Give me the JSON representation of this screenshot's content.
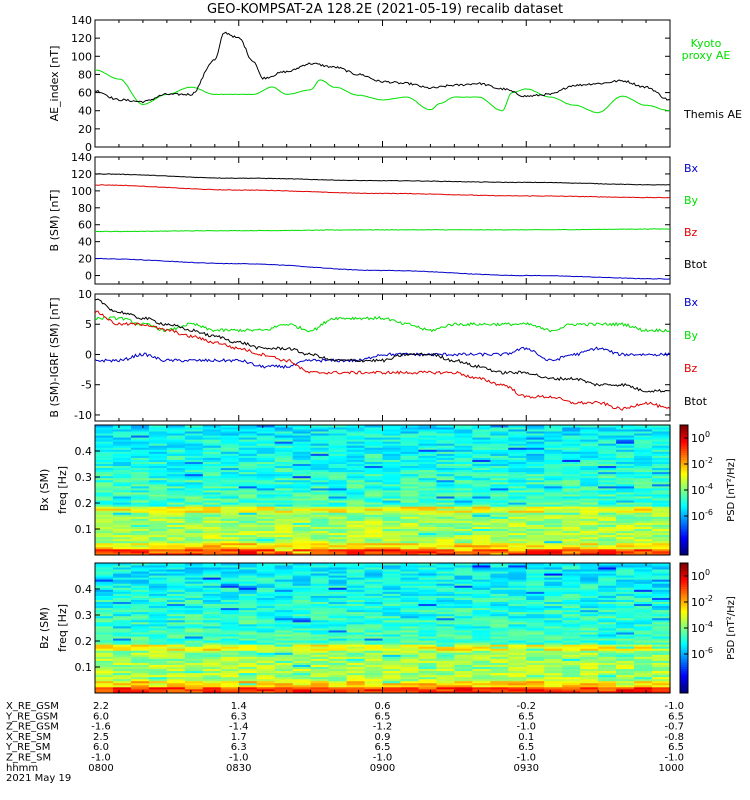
{
  "title": "GEO-KOMPSAT-2A 128.2E (2021-05-19) recalib dataset",
  "colors": {
    "black": "#000000",
    "red": "#e00000",
    "green": "#00e000",
    "blue": "#0000c8"
  },
  "chart_data": [
    {
      "type": "line",
      "id": "ae",
      "ylabel": "AE_index [nT]",
      "ylim": [
        0,
        140
      ],
      "yticks": [
        0,
        20,
        40,
        60,
        80,
        100,
        120,
        140
      ],
      "x_unit": "UT",
      "xlim": [
        "0800",
        "1000"
      ],
      "legend_placement": "right",
      "series": [
        {
          "name": "Kyoto proxy AE",
          "color": "#00e000",
          "x": [
            "0800",
            "0805",
            "0810",
            "0815",
            "0820",
            "0825",
            "0830",
            "0833",
            "0837",
            "0840",
            "0845",
            "0847",
            "0850",
            "0855",
            "0900",
            "0905",
            "0910",
            "0912",
            "0915",
            "0920",
            "0925",
            "0927",
            "0930",
            "0935",
            "0940",
            "0945",
            "0950",
            "0955",
            "1000"
          ],
          "values": [
            85,
            75,
            47,
            58,
            66,
            58,
            58,
            58,
            66,
            58,
            63,
            74,
            66,
            57,
            52,
            55,
            41,
            48,
            55,
            55,
            40,
            60,
            64,
            55,
            46,
            38,
            56,
            46,
            40
          ]
        },
        {
          "name": "Themis AE",
          "color": "#000000",
          "x": [
            "0800",
            "0805",
            "0810",
            "0815",
            "0820",
            "0825",
            "0827",
            "0830",
            "0833",
            "0835",
            "0840",
            "0845",
            "0850",
            "0855",
            "0900",
            "0905",
            "0910",
            "0915",
            "0920",
            "0925",
            "0930",
            "0935",
            "0940",
            "0945",
            "0950",
            "0955",
            "1000"
          ],
          "values": [
            62,
            52,
            50,
            58,
            58,
            96,
            126,
            120,
            95,
            76,
            83,
            92,
            88,
            80,
            72,
            70,
            65,
            68,
            70,
            64,
            56,
            58,
            68,
            70,
            73,
            66,
            52
          ]
        }
      ]
    },
    {
      "type": "line",
      "id": "b",
      "ylabel": "B (SM) [nT]",
      "ylim": [
        -10,
        140
      ],
      "yticks": [
        0,
        20,
        40,
        60,
        80,
        100,
        120,
        140
      ],
      "legend_placement": "right",
      "series": [
        {
          "name": "Bx",
          "color": "#0000c8",
          "x": [
            "0800",
            "0830",
            "0900",
            "0930",
            "1000"
          ],
          "values": [
            20,
            14,
            6,
            0,
            -4
          ]
        },
        {
          "name": "By",
          "color": "#00e000",
          "x": [
            "0800",
            "0830",
            "0900",
            "0930",
            "1000"
          ],
          "values": [
            52,
            53,
            54,
            54,
            55
          ]
        },
        {
          "name": "Bz",
          "color": "#e00000",
          "x": [
            "0800",
            "0830",
            "0900",
            "0930",
            "1000"
          ],
          "values": [
            107,
            101,
            97,
            94,
            92
          ]
        },
        {
          "name": "Btot",
          "color": "#000000",
          "x": [
            "0800",
            "0830",
            "0900",
            "0930",
            "1000"
          ],
          "values": [
            120,
            115,
            112,
            110,
            107
          ]
        }
      ]
    },
    {
      "type": "line",
      "id": "db",
      "ylabel": "B (SM)-IGRF (SM) [nT]",
      "ylim": [
        -11,
        10
      ],
      "yticks": [
        -10,
        -5,
        0,
        5,
        10
      ],
      "legend_placement": "right",
      "series": [
        {
          "name": "Bx",
          "color": "#0000c8",
          "x": [
            "0800",
            "0805",
            "0810",
            "0815",
            "0820",
            "0825",
            "0830",
            "0835",
            "0840",
            "0845",
            "0850",
            "0855",
            "0900",
            "0905",
            "0910",
            "0915",
            "0920",
            "0925",
            "0930",
            "0935",
            "0940",
            "0945",
            "0950",
            "0955",
            "1000"
          ],
          "values": [
            -1,
            -1,
            0,
            -1,
            -1,
            -1,
            -1,
            -2,
            -2,
            -1,
            -1,
            -1,
            0,
            0,
            0,
            0,
            0,
            0,
            1,
            -1,
            0,
            1,
            0,
            0,
            0
          ]
        },
        {
          "name": "By",
          "color": "#00e000",
          "x": [
            "0800",
            "0805",
            "0810",
            "0815",
            "0820",
            "0825",
            "0830",
            "0835",
            "0840",
            "0845",
            "0850",
            "0855",
            "0900",
            "0905",
            "0910",
            "0915",
            "0920",
            "0925",
            "0930",
            "0935",
            "0940",
            "0945",
            "0950",
            "0955",
            "1000"
          ],
          "values": [
            6,
            6,
            5,
            4,
            5,
            4,
            4,
            4,
            5,
            4,
            6,
            6,
            6,
            5,
            4,
            5,
            5,
            5,
            5,
            4,
            5,
            5,
            5,
            4,
            4
          ]
        },
        {
          "name": "Bz",
          "color": "#e00000",
          "x": [
            "0800",
            "0805",
            "0810",
            "0815",
            "0820",
            "0825",
            "0830",
            "0835",
            "0840",
            "0845",
            "0850",
            "0855",
            "0900",
            "0905",
            "0910",
            "0915",
            "0920",
            "0925",
            "0930",
            "0935",
            "0940",
            "0945",
            "0950",
            "0955",
            "1000"
          ],
          "values": [
            7,
            5,
            5,
            4,
            3,
            2,
            1,
            0,
            -1,
            -3,
            -3,
            -3,
            -3,
            -3,
            -3,
            -3,
            -4,
            -5,
            -7,
            -7,
            -8,
            -8,
            -9,
            -8,
            -9
          ]
        },
        {
          "name": "Btot",
          "color": "#000000",
          "x": [
            "0800",
            "0805",
            "0810",
            "0815",
            "0820",
            "0825",
            "0830",
            "0835",
            "0840",
            "0845",
            "0850",
            "0855",
            "0900",
            "0905",
            "0910",
            "0915",
            "0920",
            "0925",
            "0930",
            "0935",
            "0940",
            "0945",
            "0950",
            "0955",
            "1000"
          ],
          "values": [
            9,
            7,
            6,
            5,
            4,
            3,
            2,
            1,
            1,
            0,
            -1,
            -1,
            -1,
            0,
            0,
            -1,
            -2,
            -3,
            -3,
            -4,
            -4,
            -5,
            -5,
            -6,
            -6
          ]
        }
      ]
    },
    {
      "type": "heatmap",
      "id": "spec-bx",
      "ylabel": "Bx (SM) freq [Hz]",
      "ylim": [
        0,
        0.5
      ],
      "yticks": [
        0.1,
        0.2,
        0.3,
        0.4
      ],
      "colorbar_label": "PSD [nT²/Hz]",
      "colorbar_scale": "log",
      "colorbar_range": [
        1e-09,
        10
      ],
      "colorbar_ticks": [
        "10^0",
        "10^-2",
        "10^-4",
        "10^-6"
      ]
    },
    {
      "type": "heatmap",
      "id": "spec-bz",
      "ylabel": "Bz (SM) freq [Hz]",
      "ylim": [
        0,
        0.5
      ],
      "yticks": [
        0.1,
        0.2,
        0.3,
        0.4
      ],
      "colorbar_label": "PSD [nT²/Hz]",
      "colorbar_scale": "log",
      "colorbar_range": [
        1e-09,
        10
      ],
      "colorbar_ticks": [
        "10^0",
        "10^-2",
        "10^-4",
        "10^-6"
      ]
    }
  ],
  "ephemeris": {
    "rows": [
      {
        "label": "X_RE_GSM",
        "values": [
          "2.2",
          "1.4",
          "0.6",
          "-0.2",
          "-1.0"
        ]
      },
      {
        "label": "Y_RE_GSM",
        "values": [
          "6.0",
          "6.3",
          "6.5",
          "6.5",
          "6.5"
        ]
      },
      {
        "label": "Z_RE_GSM",
        "values": [
          "-1.6",
          "-1.4",
          "-1.2",
          "-1.0",
          "-0.7"
        ]
      },
      {
        "label": "X_RE_SM",
        "values": [
          "2.5",
          "1.7",
          "0.9",
          "0.1",
          "-0.8"
        ]
      },
      {
        "label": "Y_RE_SM",
        "values": [
          "6.0",
          "6.3",
          "6.5",
          "6.5",
          "6.5"
        ]
      },
      {
        "label": "Z_RE_SM",
        "values": [
          "-1.0",
          "-1.0",
          "-1.0",
          "-1.0",
          "-1.0"
        ]
      },
      {
        "label": "hhmm",
        "values": [
          "0800",
          "0830",
          "0900",
          "0930",
          "1000"
        ]
      }
    ],
    "date": "2021 May 19"
  }
}
